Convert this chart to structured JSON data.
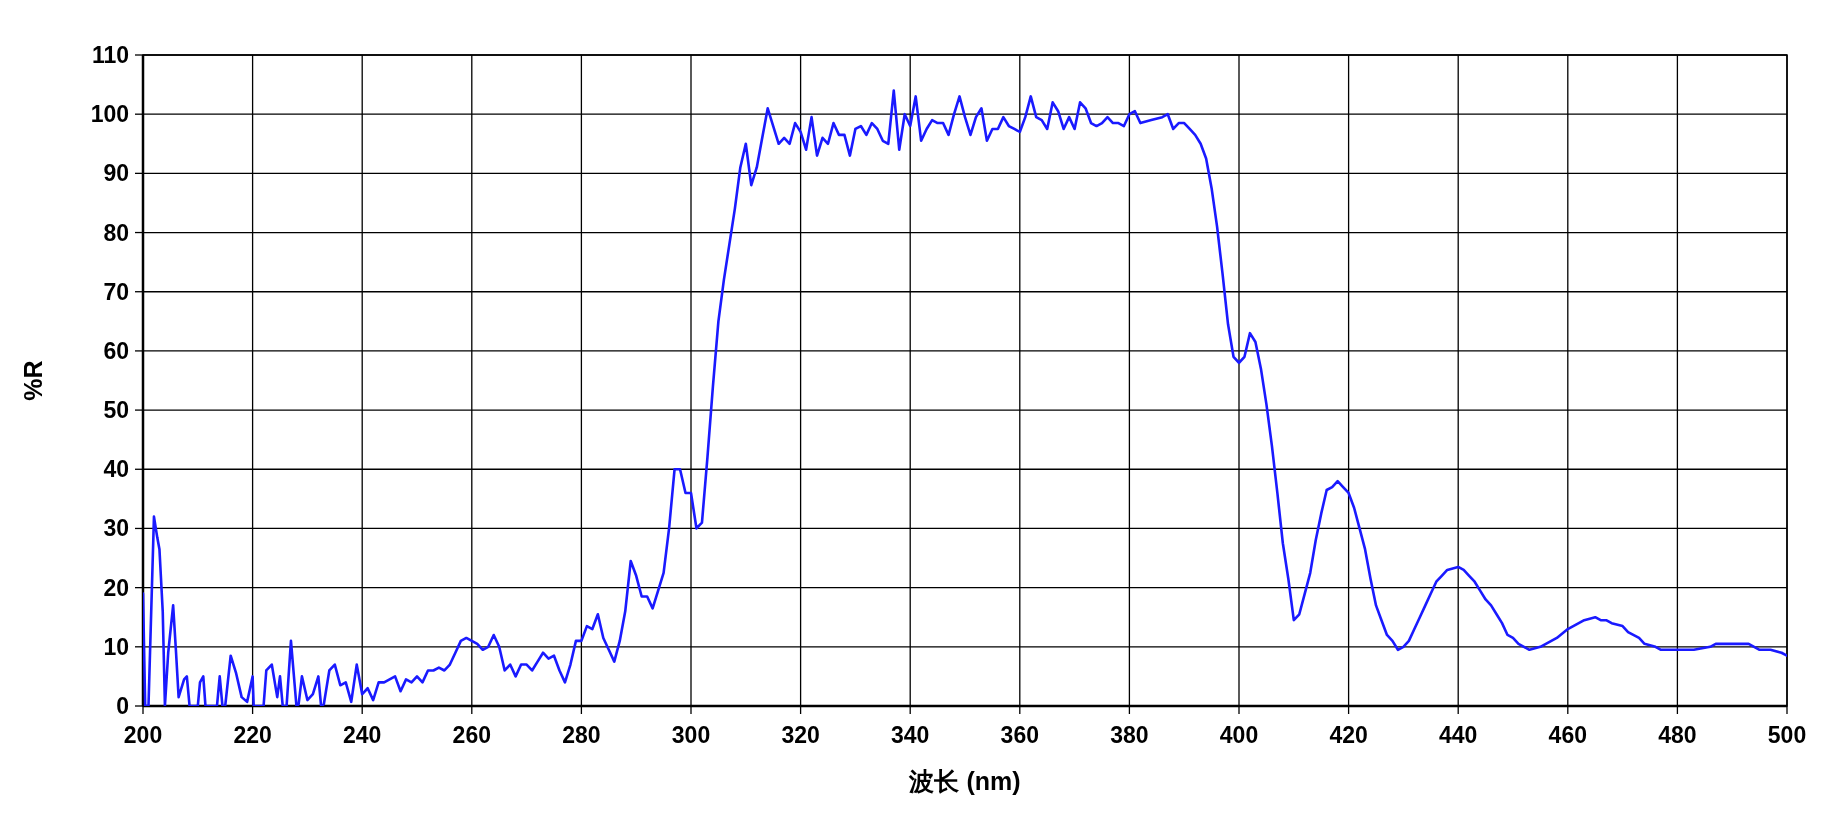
{
  "chart_data": {
    "type": "line",
    "xlabel": "波长 (nm)",
    "ylabel": "%R",
    "xlim": [
      200,
      500
    ],
    "ylim": [
      0,
      110
    ],
    "xticks": [
      200,
      220,
      240,
      260,
      280,
      300,
      320,
      340,
      360,
      380,
      400,
      420,
      440,
      460,
      480,
      500
    ],
    "yticks": [
      0,
      10,
      20,
      30,
      40,
      50,
      60,
      70,
      80,
      90,
      100,
      110
    ],
    "grid": true,
    "line_style": "solid",
    "x": [
      200,
      200.4,
      201,
      202,
      202.6,
      203,
      203.6,
      204,
      204.6,
      205.5,
      206,
      206.5,
      207.5,
      208,
      208.5,
      210,
      210.4,
      211,
      211.4,
      213.5,
      214,
      214.5,
      215,
      216,
      217,
      218,
      219,
      220,
      220.2,
      222,
      222.5,
      223.5,
      224.5,
      225,
      225.5,
      226.2,
      227,
      228,
      228.4,
      229,
      230,
      231,
      232,
      232.5,
      233,
      234,
      235,
      236,
      237,
      238,
      239,
      240,
      241,
      242,
      243,
      244,
      245,
      246,
      247,
      248,
      249,
      250,
      251,
      252,
      253,
      254,
      255,
      256,
      257,
      258,
      259,
      260,
      261,
      262,
      263,
      264,
      265,
      266,
      267,
      268,
      269,
      270,
      271,
      272,
      273,
      274,
      275,
      276,
      277,
      278,
      279,
      280,
      281,
      282,
      283,
      284,
      285,
      286,
      287,
      288,
      289,
      290,
      291,
      292,
      293,
      294,
      295,
      296,
      297,
      298,
      299,
      300,
      301,
      302,
      303,
      304,
      305,
      306,
      307,
      308,
      309,
      310,
      311,
      312,
      313,
      314,
      315,
      316,
      317,
      318,
      319,
      320,
      321,
      322,
      323,
      324,
      325,
      326,
      327,
      328,
      329,
      330,
      331,
      332,
      333,
      334,
      335,
      336,
      337,
      338,
      339,
      340,
      341,
      342,
      343,
      344,
      345,
      346,
      347,
      348,
      349,
      350,
      351,
      352,
      353,
      354,
      355,
      356,
      357,
      358,
      359,
      360,
      361,
      362,
      363,
      364,
      365,
      366,
      367,
      368,
      369,
      370,
      371,
      372,
      373,
      374,
      375,
      376,
      377,
      378,
      379,
      380,
      381,
      382,
      384,
      386,
      387,
      388,
      389,
      390,
      391,
      392,
      393,
      394,
      395,
      396,
      397,
      398,
      399,
      400,
      401,
      402,
      403,
      404,
      405,
      406,
      407,
      408,
      409,
      410,
      411,
      412,
      413,
      414,
      415,
      416,
      417,
      418,
      419,
      420,
      421,
      422,
      423,
      424,
      425,
      426,
      427,
      428,
      429,
      430,
      431,
      432,
      433,
      434,
      435,
      436,
      437,
      438,
      440,
      441,
      442,
      443,
      444,
      445,
      446,
      447,
      448,
      449,
      450,
      451,
      452,
      453,
      455,
      456,
      457,
      458,
      460,
      462,
      463,
      465,
      466,
      467,
      468,
      470,
      471,
      473,
      474,
      476,
      477,
      480,
      483,
      486,
      487,
      490,
      493,
      494,
      495,
      497,
      499,
      500
    ],
    "series": [
      {
        "color": "#1a1aff",
        "values": [
          19,
          0,
          0,
          32,
          28.5,
          26.5,
          16,
          0,
          9,
          17,
          9.5,
          1.5,
          4.5,
          5,
          0,
          0,
          4,
          5,
          0,
          0,
          5,
          0,
          0,
          8.5,
          5.5,
          1.5,
          0.7,
          5,
          0,
          0,
          6,
          7,
          1.5,
          5,
          0,
          0,
          11,
          0,
          0.3,
          5,
          1,
          2,
          5,
          0,
          0.3,
          6,
          7,
          3.5,
          4,
          0.7,
          7,
          2,
          3,
          1,
          4,
          4,
          4.5,
          5,
          2.5,
          4.5,
          4,
          5,
          4,
          6,
          6,
          6.5,
          6,
          7,
          9,
          11,
          11.5,
          11,
          10.5,
          9.5,
          10,
          12,
          10,
          6,
          7,
          5,
          7,
          7,
          6,
          7.5,
          9,
          8,
          8.5,
          6,
          4,
          7,
          11,
          11,
          13.5,
          13,
          15.5,
          11.5,
          9.5,
          7.5,
          11,
          16,
          24.5,
          22,
          18.5,
          18.5,
          16.5,
          19.5,
          22.5,
          30,
          40,
          40,
          36,
          36,
          30,
          31,
          42,
          54,
          65,
          72,
          78,
          84,
          91,
          95,
          88,
          91,
          96,
          101,
          98,
          95,
          96,
          95,
          98.5,
          97,
          94,
          99.5,
          93,
          96,
          95,
          98.5,
          96.5,
          96.5,
          93,
          97.5,
          98,
          96.5,
          98.5,
          97.5,
          95.5,
          95,
          104,
          94,
          100,
          98,
          103,
          95.5,
          97.5,
          99,
          98.5,
          98.5,
          96.5,
          100,
          103,
          99.5,
          96.5,
          99.5,
          101,
          95.5,
          97.5,
          97.5,
          99.5,
          98,
          97.5,
          97,
          99.5,
          103,
          99.5,
          99,
          97.5,
          102,
          100.5,
          97.5,
          99.5,
          97.5,
          102,
          101,
          98.5,
          98,
          98.5,
          99.5,
          98.5,
          98.5,
          98,
          100,
          100.5,
          98.5,
          99,
          99.5,
          100,
          97.5,
          98.5,
          98.5,
          97.5,
          96.5,
          95,
          92.5,
          87.5,
          81,
          73,
          64.5,
          59,
          58,
          59,
          63,
          61.5,
          57,
          51,
          44,
          36,
          27.5,
          21.5,
          14.5,
          15.5,
          19,
          22.5,
          28,
          32.5,
          36.5,
          37,
          38,
          37,
          36,
          33.5,
          30,
          26.5,
          21.5,
          17,
          14.5,
          12,
          11,
          9.5,
          10,
          11,
          13,
          15,
          17,
          19,
          21,
          22,
          23,
          23.5,
          23,
          22,
          21,
          19.5,
          18,
          17,
          15.5,
          14,
          12,
          11.5,
          10.5,
          10,
          9.5,
          10,
          10.5,
          11,
          11.5,
          13,
          14,
          14.5,
          15,
          14.5,
          14.5,
          14,
          13.5,
          12.5,
          11.5,
          10.5,
          10,
          9.5,
          9.5,
          9.5,
          10,
          10.5,
          10.5,
          10.5,
          10,
          9.5,
          9.5,
          9,
          8.5
        ]
      }
    ]
  }
}
